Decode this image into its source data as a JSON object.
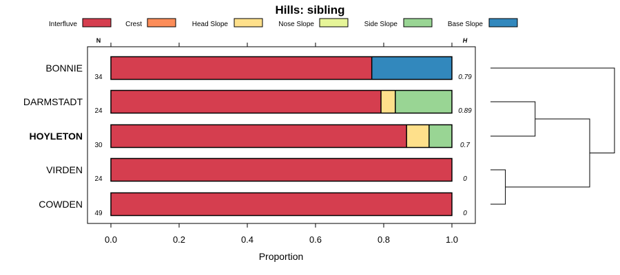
{
  "chart_data": {
    "type": "bar",
    "orientation": "horizontal",
    "stacked": true,
    "title": "Hills: sibling",
    "xlabel": "Proportion",
    "xlim": [
      0,
      1
    ],
    "xticks": [
      "0.0",
      "0.2",
      "0.4",
      "0.6",
      "0.8",
      "1.0"
    ],
    "xtick_values": [
      0,
      0.2,
      0.4,
      0.6,
      0.8,
      1.0
    ],
    "n_header": "N",
    "h_header": "H",
    "legend_position": "top",
    "legend": [
      {
        "name": "Interfluve",
        "color": "#d53e4f"
      },
      {
        "name": "Crest",
        "color": "#fc8d59"
      },
      {
        "name": "Head Slope",
        "color": "#fee08b"
      },
      {
        "name": "Nose Slope",
        "color": "#e6f598"
      },
      {
        "name": "Side Slope",
        "color": "#99d594"
      },
      {
        "name": "Base Slope",
        "color": "#3288bd"
      }
    ],
    "categories": [
      "BONNIE",
      "DARMSTADT",
      "HOYLETON",
      "VIRDEN",
      "COWDEN"
    ],
    "highlighted": "HOYLETON",
    "n": [
      "34",
      "24",
      "30",
      "24",
      "49"
    ],
    "h": [
      "0.79",
      "0.89",
      "0.7",
      "0",
      "0"
    ],
    "series": [
      {
        "name": "Interfluve",
        "values": [
          0.765,
          0.792,
          0.867,
          1.0,
          1.0
        ]
      },
      {
        "name": "Crest",
        "values": [
          0,
          0,
          0,
          0,
          0
        ]
      },
      {
        "name": "Head Slope",
        "values": [
          0,
          0.042,
          0.066,
          0,
          0
        ]
      },
      {
        "name": "Nose Slope",
        "values": [
          0,
          0,
          0,
          0,
          0
        ]
      },
      {
        "name": "Side Slope",
        "values": [
          0,
          0.166,
          0.067,
          0,
          0
        ]
      },
      {
        "name": "Base Slope",
        "values": [
          0.235,
          0,
          0,
          0,
          0
        ]
      }
    ],
    "dendrogram": {
      "description": "hierarchical clustering of rows",
      "merges": [
        {
          "left": "VIRDEN",
          "right": "COWDEN",
          "height": 0.12
        },
        {
          "left": "DARMSTADT",
          "right": "HOYLETON",
          "height": 0.36
        },
        {
          "left": "cluster(DARMSTADT,HOYLETON)",
          "right": "cluster(VIRDEN,COWDEN)",
          "height": 0.8
        },
        {
          "left": "BONNIE",
          "right": "cluster(all others)",
          "height": 1.0
        }
      ]
    }
  }
}
